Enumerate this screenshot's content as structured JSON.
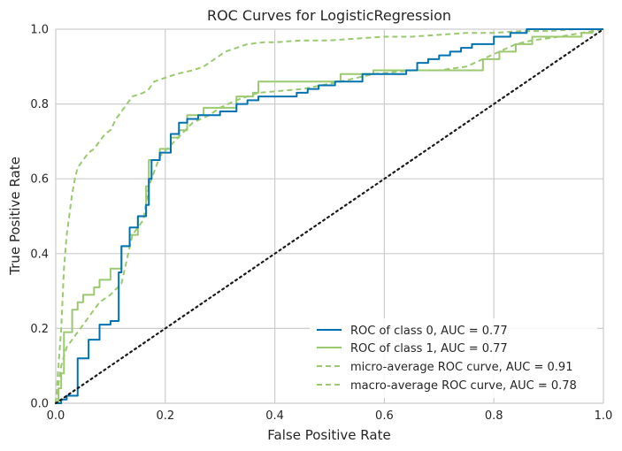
{
  "chart_data": {
    "type": "line",
    "title": "ROC Curves for LogisticRegression",
    "xlabel": "False Positive Rate",
    "ylabel": "True Positive Rate",
    "xlim": [
      0,
      1
    ],
    "ylim": [
      0,
      1
    ],
    "xticks": [
      "0.0",
      "0.2",
      "0.4",
      "0.6",
      "0.8",
      "1.0"
    ],
    "yticks": [
      "0.0",
      "0.2",
      "0.4",
      "0.6",
      "0.8",
      "1.0"
    ],
    "grid": true,
    "legend_position": "bottom-right",
    "colors": {
      "class0": "#0072B2",
      "class1": "#9BC96F",
      "chance": "#1a1a1a",
      "grid": "#cccccc"
    },
    "series": [
      {
        "name": "ROC of class 0, AUC = 0.77",
        "style": "solid",
        "x": [
          0,
          0.01,
          0.01,
          0.02,
          0.02,
          0.04,
          0.04,
          0.06,
          0.06,
          0.08,
          0.08,
          0.1,
          0.1,
          0.115,
          0.115,
          0.12,
          0.12,
          0.135,
          0.135,
          0.15,
          0.15,
          0.165,
          0.165,
          0.17,
          0.17,
          0.175,
          0.175,
          0.19,
          0.19,
          0.21,
          0.21,
          0.225,
          0.225,
          0.24,
          0.24,
          0.26,
          0.26,
          0.3,
          0.3,
          0.33,
          0.33,
          0.35,
          0.35,
          0.37,
          0.37,
          0.44,
          0.44,
          0.46,
          0.46,
          0.48,
          0.48,
          0.51,
          0.51,
          0.56,
          0.56,
          0.64,
          0.64,
          0.66,
          0.66,
          0.68,
          0.68,
          0.7,
          0.7,
          0.72,
          0.72,
          0.74,
          0.74,
          0.76,
          0.76,
          0.8,
          0.8,
          0.83,
          0.83,
          0.86,
          0.86,
          1.0
        ],
        "y": [
          0,
          0,
          0.01,
          0.01,
          0.02,
          0.02,
          0.12,
          0.12,
          0.17,
          0.17,
          0.21,
          0.21,
          0.22,
          0.22,
          0.35,
          0.35,
          0.42,
          0.42,
          0.47,
          0.47,
          0.5,
          0.5,
          0.53,
          0.53,
          0.6,
          0.6,
          0.65,
          0.65,
          0.67,
          0.67,
          0.72,
          0.72,
          0.75,
          0.75,
          0.76,
          0.76,
          0.77,
          0.77,
          0.78,
          0.78,
          0.8,
          0.8,
          0.81,
          0.81,
          0.82,
          0.82,
          0.83,
          0.83,
          0.84,
          0.84,
          0.85,
          0.85,
          0.86,
          0.86,
          0.88,
          0.88,
          0.89,
          0.89,
          0.91,
          0.91,
          0.92,
          0.92,
          0.93,
          0.93,
          0.94,
          0.94,
          0.95,
          0.95,
          0.96,
          0.96,
          0.98,
          0.98,
          0.99,
          0.99,
          1.0,
          1.0
        ]
      },
      {
        "name": "ROC of class 1, AUC = 0.77",
        "style": "solid",
        "x": [
          0,
          0.005,
          0.005,
          0.01,
          0.01,
          0.015,
          0.015,
          0.03,
          0.03,
          0.04,
          0.04,
          0.05,
          0.05,
          0.07,
          0.07,
          0.08,
          0.08,
          0.1,
          0.1,
          0.12,
          0.12,
          0.135,
          0.135,
          0.15,
          0.15,
          0.165,
          0.165,
          0.17,
          0.17,
          0.19,
          0.19,
          0.21,
          0.21,
          0.225,
          0.225,
          0.24,
          0.24,
          0.27,
          0.27,
          0.33,
          0.33,
          0.36,
          0.36,
          0.37,
          0.37,
          0.52,
          0.52,
          0.58,
          0.58,
          0.78,
          0.78,
          0.81,
          0.81,
          0.84,
          0.84,
          0.87,
          0.87,
          0.96,
          0.96,
          0.98,
          0.98,
          1.0
        ],
        "y": [
          0,
          0,
          0.04,
          0.04,
          0.08,
          0.08,
          0.19,
          0.19,
          0.25,
          0.25,
          0.27,
          0.27,
          0.29,
          0.29,
          0.31,
          0.31,
          0.33,
          0.33,
          0.36,
          0.36,
          0.42,
          0.42,
          0.45,
          0.45,
          0.5,
          0.5,
          0.58,
          0.58,
          0.65,
          0.65,
          0.68,
          0.68,
          0.71,
          0.71,
          0.73,
          0.73,
          0.77,
          0.77,
          0.79,
          0.79,
          0.82,
          0.82,
          0.83,
          0.83,
          0.86,
          0.86,
          0.88,
          0.88,
          0.89,
          0.89,
          0.92,
          0.92,
          0.94,
          0.94,
          0.96,
          0.96,
          0.98,
          0.98,
          0.99,
          0.99,
          1.0,
          1.0
        ]
      },
      {
        "name": "micro-average ROC curve, AUC = 0.91",
        "style": "dashed",
        "x": [
          0,
          0.005,
          0.01,
          0.015,
          0.02,
          0.03,
          0.035,
          0.04,
          0.05,
          0.06,
          0.07,
          0.08,
          0.09,
          0.1,
          0.11,
          0.12,
          0.13,
          0.14,
          0.16,
          0.17,
          0.18,
          0.2,
          0.22,
          0.25,
          0.27,
          0.29,
          0.31,
          0.33,
          0.35,
          0.38,
          0.4,
          0.45,
          0.5,
          0.55,
          0.6,
          0.65,
          0.7,
          0.75,
          0.8,
          0.85,
          0.9,
          0.95,
          1.0
        ],
        "y": [
          0,
          0.1,
          0.2,
          0.36,
          0.45,
          0.56,
          0.6,
          0.63,
          0.65,
          0.67,
          0.68,
          0.7,
          0.72,
          0.73,
          0.76,
          0.78,
          0.8,
          0.82,
          0.83,
          0.84,
          0.86,
          0.87,
          0.88,
          0.89,
          0.9,
          0.92,
          0.94,
          0.95,
          0.96,
          0.965,
          0.965,
          0.97,
          0.97,
          0.975,
          0.98,
          0.98,
          0.985,
          0.99,
          0.99,
          0.995,
          0.995,
          1.0,
          1.0
        ]
      },
      {
        "name": "macro-average ROC curve, AUC = 0.78",
        "style": "dashed",
        "x": [
          0,
          0.005,
          0.01,
          0.02,
          0.04,
          0.06,
          0.08,
          0.1,
          0.12,
          0.14,
          0.16,
          0.17,
          0.19,
          0.21,
          0.23,
          0.25,
          0.28,
          0.3,
          0.33,
          0.37,
          0.45,
          0.52,
          0.58,
          0.65,
          0.7,
          0.75,
          0.78,
          0.81,
          0.84,
          0.87,
          0.92,
          0.96,
          1.0
        ],
        "y": [
          0,
          0.05,
          0.1,
          0.15,
          0.19,
          0.23,
          0.27,
          0.29,
          0.32,
          0.45,
          0.49,
          0.58,
          0.66,
          0.69,
          0.72,
          0.75,
          0.77,
          0.79,
          0.81,
          0.83,
          0.84,
          0.86,
          0.88,
          0.89,
          0.89,
          0.9,
          0.92,
          0.94,
          0.96,
          0.97,
          0.98,
          0.99,
          1.0
        ]
      },
      {
        "name": "",
        "style": "dotted",
        "x": [
          0,
          1
        ],
        "y": [
          0,
          1
        ]
      }
    ]
  }
}
